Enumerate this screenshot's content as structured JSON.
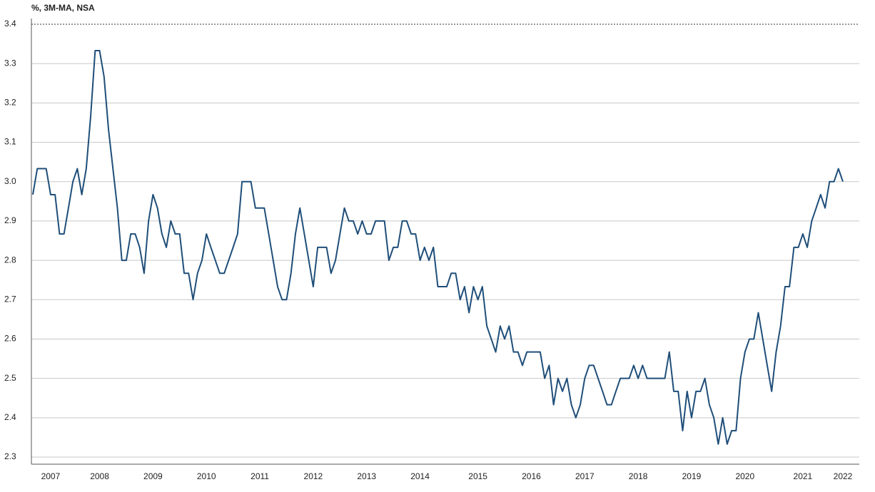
{
  "chart_data": {
    "type": "line",
    "title": "%, 3M-MA, NSA",
    "categories": [
      null,
      null,
      null,
      null,
      "2007",
      null,
      null,
      null,
      null,
      null,
      null,
      null,
      null,
      null,
      null,
      "2008",
      null,
      null,
      null,
      null,
      null,
      null,
      null,
      null,
      null,
      null,
      null,
      "2009",
      null,
      null,
      null,
      null,
      null,
      null,
      null,
      null,
      null,
      null,
      null,
      "2010",
      null,
      null,
      null,
      null,
      null,
      null,
      null,
      null,
      null,
      null,
      null,
      "2011",
      null,
      null,
      null,
      null,
      null,
      null,
      null,
      null,
      null,
      null,
      null,
      "2012",
      null,
      null,
      null,
      null,
      null,
      null,
      null,
      null,
      null,
      null,
      null,
      "2013",
      null,
      null,
      null,
      null,
      null,
      null,
      null,
      null,
      null,
      null,
      null,
      "2014",
      null,
      null,
      null,
      null,
      null,
      null,
      null,
      null,
      null,
      null,
      null,
      null,
      "2015",
      null,
      null,
      null,
      null,
      null,
      null,
      null,
      null,
      null,
      null,
      null,
      "2016",
      null,
      null,
      null,
      null,
      null,
      null,
      null,
      null,
      null,
      null,
      null,
      "2017",
      null,
      null,
      null,
      null,
      null,
      null,
      null,
      null,
      null,
      null,
      null,
      "2018",
      null,
      null,
      null,
      null,
      null,
      null,
      null,
      null,
      null,
      null,
      null,
      "2019",
      null,
      null,
      null,
      null,
      null,
      null,
      null,
      null,
      null,
      null,
      null,
      "2020",
      null,
      null,
      null,
      null,
      null,
      null,
      null,
      null,
      null,
      null,
      null,
      null,
      "2021",
      null,
      null,
      null,
      null,
      null,
      null,
      null,
      null,
      "2022"
    ],
    "values": [
      2.967,
      3.033,
      3.033,
      3.033,
      2.967,
      2.967,
      2.867,
      2.867,
      2.933,
      3.0,
      3.033,
      2.967,
      3.033,
      3.167,
      3.333,
      3.333,
      3.267,
      3.133,
      3.033,
      2.933,
      2.8,
      2.8,
      2.867,
      2.867,
      2.833,
      2.767,
      2.9,
      2.967,
      2.933,
      2.867,
      2.833,
      2.9,
      2.867,
      2.867,
      2.767,
      2.767,
      2.7,
      2.767,
      2.8,
      2.867,
      2.833,
      2.8,
      2.767,
      2.767,
      2.8,
      2.833,
      2.867,
      3.0,
      3.0,
      3.0,
      2.933,
      2.933,
      2.933,
      2.867,
      2.8,
      2.733,
      2.7,
      2.7,
      2.767,
      2.867,
      2.933,
      2.867,
      2.8,
      2.733,
      2.833,
      2.833,
      2.833,
      2.767,
      2.8,
      2.867,
      2.933,
      2.9,
      2.9,
      2.867,
      2.9,
      2.867,
      2.867,
      2.9,
      2.9,
      2.9,
      2.8,
      2.833,
      2.833,
      2.9,
      2.9,
      2.867,
      2.867,
      2.8,
      2.833,
      2.8,
      2.833,
      2.733,
      2.733,
      2.733,
      2.767,
      2.767,
      2.7,
      2.733,
      2.667,
      2.733,
      2.7,
      2.733,
      2.633,
      2.6,
      2.567,
      2.633,
      2.6,
      2.633,
      2.567,
      2.567,
      2.533,
      2.567,
      2.567,
      2.567,
      2.567,
      2.5,
      2.533,
      2.433,
      2.5,
      2.467,
      2.5,
      2.433,
      2.4,
      2.433,
      2.5,
      2.533,
      2.533,
      2.5,
      2.467,
      2.433,
      2.433,
      2.467,
      2.5,
      2.5,
      2.5,
      2.533,
      2.5,
      2.533,
      2.5,
      2.5,
      2.5,
      2.5,
      2.5,
      2.567,
      2.467,
      2.467,
      2.367,
      2.467,
      2.4,
      2.467,
      2.467,
      2.5,
      2.433,
      2.4,
      2.333,
      2.4,
      2.333,
      2.367,
      2.367,
      2.5,
      2.567,
      2.6,
      2.6,
      2.667,
      2.6,
      2.533,
      2.467,
      2.567,
      2.633,
      2.733,
      2.733,
      2.833,
      2.833,
      2.867,
      2.833,
      2.9,
      2.933,
      2.967,
      2.933,
      3.0,
      3.0,
      3.033,
      3.0
    ],
    "color": "#1f4e79",
    "ylim": [
      2.3,
      3.4
    ],
    "yticks": [
      2.3,
      2.4,
      2.5,
      2.6,
      2.7,
      2.8,
      2.9,
      {
        "value": 3.0,
        "label": "3.0"
      },
      3.1,
      3.2,
      3.3,
      3.4
    ],
    "grid": true
  }
}
